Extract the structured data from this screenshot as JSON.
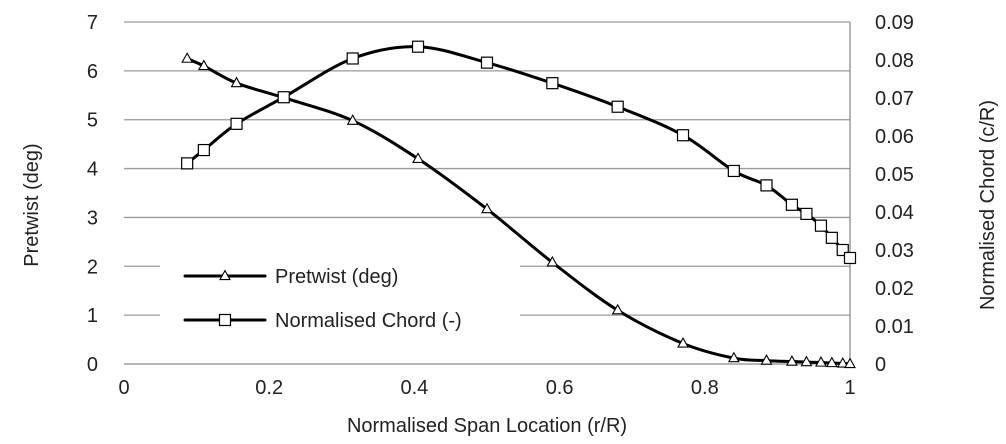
{
  "chart_data": {
    "type": "line",
    "xlabel": "Normalised Span Location (r/R)",
    "ylabel": "Pretwist (deg)",
    "y2label": "Normalised Chord (c/R)",
    "xlim": [
      0,
      1
    ],
    "ylim": [
      0,
      7
    ],
    "y2lim": [
      0,
      0.09
    ],
    "xticks": [
      "0",
      "0.2",
      "0.4",
      "0.6",
      "0.8",
      "1"
    ],
    "xtick_values": [
      0,
      0.2,
      0.4,
      0.6,
      0.8,
      1
    ],
    "yticks": [
      "0",
      "1",
      "2",
      "3",
      "4",
      "5",
      "6",
      "7"
    ],
    "ytick_values": [
      0,
      1,
      2,
      3,
      4,
      5,
      6,
      7
    ],
    "y2ticks": [
      "0",
      "0.01",
      "0.02",
      "0.03",
      "0.04",
      "0.05",
      "0.06",
      "0.07",
      "0.08",
      "0.09"
    ],
    "y2tick_values": [
      0,
      0.01,
      0.02,
      0.03,
      0.04,
      0.05,
      0.06,
      0.07,
      0.08,
      0.09
    ],
    "grid": true,
    "legend_position": "lower-left",
    "series": [
      {
        "name": "Pretwist (deg)",
        "axis": "left",
        "marker": "triangle",
        "x": [
          0.087,
          0.11,
          0.155,
          0.22,
          0.315,
          0.405,
          0.5,
          0.59,
          0.68,
          0.77,
          0.84,
          0.885,
          0.92,
          0.94,
          0.96,
          0.975,
          0.99,
          1.0
        ],
        "y": [
          6.25,
          6.1,
          5.75,
          5.45,
          4.98,
          4.2,
          3.17,
          2.08,
          1.1,
          0.42,
          0.12,
          0.07,
          0.05,
          0.04,
          0.03,
          0.02,
          0.01,
          0.0
        ]
      },
      {
        "name": "Normalised Chord (-)",
        "axis": "right",
        "marker": "square",
        "x": [
          0.087,
          0.11,
          0.155,
          0.22,
          0.315,
          0.405,
          0.5,
          0.59,
          0.68,
          0.77,
          0.84,
          0.885,
          0.92,
          0.94,
          0.96,
          0.975,
          0.99,
          1.0
        ],
        "y": [
          0.0528,
          0.0563,
          0.0632,
          0.0702,
          0.0804,
          0.0835,
          0.0793,
          0.0739,
          0.0677,
          0.0602,
          0.0508,
          0.047,
          0.0419,
          0.0395,
          0.0364,
          0.0332,
          0.03,
          0.0279
        ]
      }
    ]
  }
}
